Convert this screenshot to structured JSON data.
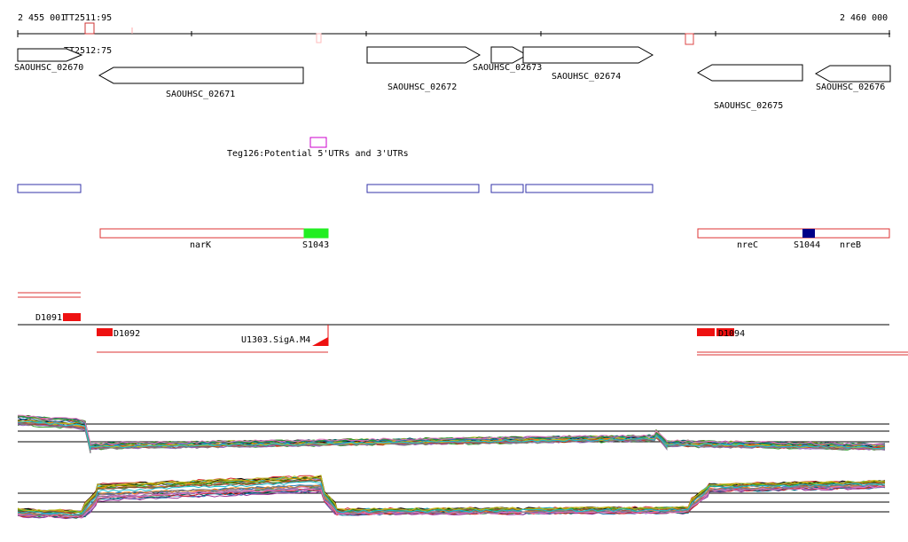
{
  "coords": {
    "left": "2 455 001",
    "right": "2 460 000"
  },
  "terminators": {
    "tt1": "TT2511:95",
    "tt2": "TT2512:75"
  },
  "genes": {
    "g2670": "SAOUHSC_02670",
    "g2671": "SAOUHSC_02671",
    "g2672": "SAOUHSC_02672",
    "g2673": "SAOUHSC_02673",
    "g2674": "SAOUHSC_02674",
    "g2675": "SAOUHSC_02675",
    "g2676": "SAOUHSC_02676"
  },
  "teg": {
    "label": "Teg126:Potential 5'UTRs and 3'UTRs"
  },
  "operons": {
    "narK": "narK",
    "s1043": "S1043",
    "nreC": "nreC",
    "s1044": "S1044",
    "nreB": "nreB"
  },
  "downshifts": {
    "d1091": "D1091",
    "d1092": "D1092",
    "d1094": "D1094"
  },
  "upshift": {
    "u1303": "U1303.SigA.M4"
  },
  "colors": {
    "operon_border": "#dd3333",
    "s1043": "#22ee22",
    "s1044": "#000088",
    "promoter_border": "#3333aa",
    "segment_fill": "#ee1111",
    "terminator": "#cc3333"
  }
}
